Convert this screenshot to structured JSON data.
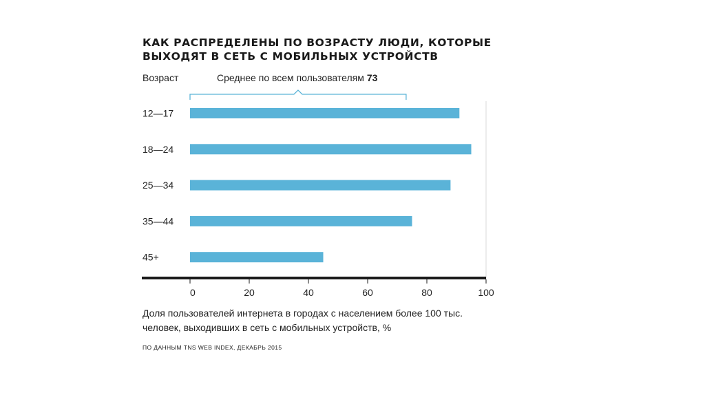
{
  "title_lines": [
    "Как распределены по возрасту люди, которые",
    "выходят в сеть с мобильных устройств"
  ],
  "average": {
    "label": "Среднее по всем пользователям",
    "value": 73
  },
  "source": "По данным TNS Web Index, декабрь 2015",
  "colors": {
    "bar": "#5ab3d8",
    "axis": "#1a1a1a",
    "grid": "#d9d9d9",
    "bracket": "#5ab3d8"
  },
  "chart_data": {
    "type": "bar",
    "orientation": "horizontal",
    "ylabel": "Возраст",
    "xlabel_lines": [
      "Доля пользователей интернета в городах с населением более 100 тыс.",
      "человек, выходивших в сеть с мобильных устройств, %"
    ],
    "categories": [
      "12—17",
      "18—24",
      "25—34",
      "35—44",
      "45+"
    ],
    "values": [
      91,
      95,
      88,
      75,
      45
    ],
    "xlim": [
      0,
      100
    ],
    "xticks": [
      0,
      20,
      40,
      60,
      80,
      100
    ],
    "grid": true,
    "legend": false
  }
}
